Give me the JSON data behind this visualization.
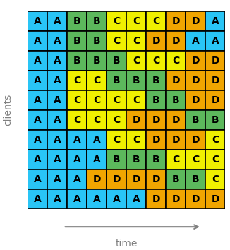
{
  "grid": [
    [
      "A",
      "A",
      "B",
      "B",
      "C",
      "C",
      "C",
      "D",
      "D",
      "A"
    ],
    [
      "A",
      "A",
      "B",
      "B",
      "C",
      "C",
      "D",
      "D",
      "A",
      "A"
    ],
    [
      "A",
      "A",
      "B",
      "B",
      "B",
      "C",
      "C",
      "C",
      "D",
      "D"
    ],
    [
      "A",
      "A",
      "C",
      "C",
      "B",
      "B",
      "B",
      "D",
      "D",
      "D"
    ],
    [
      "A",
      "A",
      "C",
      "C",
      "C",
      "C",
      "B",
      "B",
      "D",
      "D"
    ],
    [
      "A",
      "A",
      "C",
      "C",
      "C",
      "D",
      "D",
      "D",
      "B",
      "B"
    ],
    [
      "A",
      "A",
      "A",
      "A",
      "C",
      "C",
      "D",
      "D",
      "D",
      "C"
    ],
    [
      "A",
      "A",
      "A",
      "A",
      "B",
      "B",
      "B",
      "C",
      "C",
      "C"
    ],
    [
      "A",
      "A",
      "A",
      "D",
      "D",
      "D",
      "D",
      "B",
      "B",
      "C"
    ],
    [
      "A",
      "A",
      "A",
      "A",
      "A",
      "A",
      "D",
      "D",
      "D",
      "D"
    ]
  ],
  "colors": {
    "A": "#29c5f6",
    "B": "#5cb85c",
    "C": "#f0f000",
    "D": "#f0a500"
  },
  "xlabel": "time",
  "ylabel": "clients",
  "nrows": 10,
  "ncols": 10,
  "figsize": [
    3.26,
    3.54
  ],
  "dpi": 100,
  "cell_text_fontsize": 10,
  "border_color": "#000000",
  "border_linewidth": 1.2,
  "label_color": "#808080",
  "label_fontsize": 10
}
